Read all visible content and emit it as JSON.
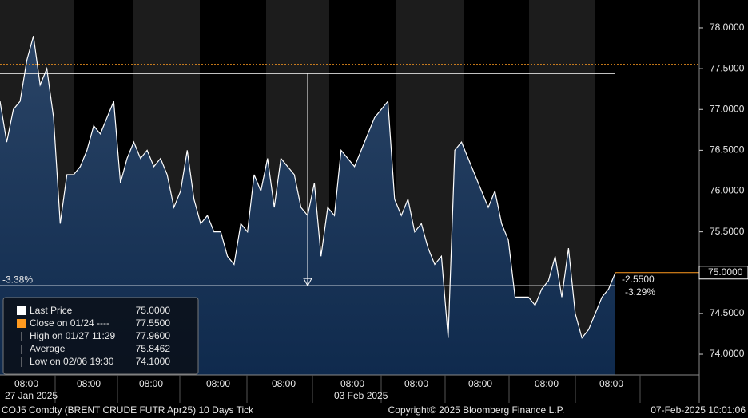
{
  "chart_data": {
    "type": "line",
    "series": [
      {
        "color": "#ffffff",
        "values": [
          77.1,
          76.6,
          77.0,
          77.1,
          77.6,
          77.9,
          77.3,
          77.5,
          76.9,
          75.6,
          76.2,
          76.2,
          76.3,
          76.5,
          76.8,
          76.7,
          76.9,
          77.1,
          76.1,
          76.4,
          76.6,
          76.4,
          76.5,
          76.3,
          76.4,
          76.2,
          75.8,
          76.0,
          76.5,
          75.9,
          75.6,
          75.7,
          75.5,
          75.5,
          75.2,
          75.1,
          75.6,
          75.5,
          76.2,
          76.0,
          76.4,
          75.8,
          76.4,
          76.3,
          76.2,
          75.8,
          75.7,
          76.1,
          75.2,
          75.8,
          75.7,
          76.5,
          76.4,
          76.3,
          76.5,
          76.7,
          76.9,
          77.0,
          77.1,
          75.9,
          75.7,
          75.9,
          75.5,
          75.6,
          75.3,
          75.1,
          75.2,
          74.2,
          76.5,
          76.6,
          76.4,
          76.2,
          76.0,
          75.8,
          76.0,
          75.6,
          75.4,
          74.7,
          74.7,
          74.7,
          74.6,
          74.8,
          74.9,
          75.2,
          74.7,
          75.3,
          74.5,
          74.2,
          74.3,
          74.5,
          74.7,
          74.8,
          75.0
        ]
      }
    ],
    "ylim": [
      73.746,
      78.342
    ],
    "yticks": [
      {
        "value": 74,
        "label": "74.0000"
      },
      {
        "value": 74.5,
        "label": "74.5000"
      },
      {
        "value": 75,
        "label": "75.0000"
      },
      {
        "value": 75.5,
        "label": "75.5000"
      },
      {
        "value": 76,
        "label": "76.0000"
      },
      {
        "value": 76.5,
        "label": "76.5000"
      },
      {
        "value": 77,
        "label": "77.0000"
      },
      {
        "value": 77.5,
        "label": "77.5000"
      },
      {
        "value": 78,
        "label": "78.0000"
      }
    ],
    "x_tick_labels": [
      "08:00",
      "08:00",
      "08:00",
      "08:00",
      "08:00",
      "08:00",
      "08:00",
      "08:00",
      "08:00",
      "08:00"
    ],
    "x_date_labels": [
      "27 Jan 2025",
      "03 Feb 2025"
    ],
    "legend": [
      {
        "label": "Last Price",
        "value": 75,
        "value_label": "75.0000"
      },
      {
        "label": "Close on 01/24 ----",
        "value": 77.55,
        "value_label": "77.5500"
      },
      {
        "label": "High on 01/27 11:29",
        "value": 77.96,
        "value_label": "77.9600"
      },
      {
        "label": "Average",
        "value": 75.8462,
        "value_label": "75.8462"
      },
      {
        "label": "Low on 02/06 19:30",
        "value": 74.1,
        "value_label": "74.1000"
      }
    ],
    "range": {
      "start": 77.44,
      "end": 74.84,
      "label": "-3.38%"
    },
    "change": {
      "label": "-2.5500",
      "percent": "-3.29%"
    },
    "footer": {
      "left": "COJ5 Comdty (BRENT CRUDE FUTR  Apr25) 10 Days  Tick",
      "center": "Copyright© 2025 Bloomberg Finance L.P.",
      "right": "07-Feb-2025 10:01:06"
    }
  }
}
